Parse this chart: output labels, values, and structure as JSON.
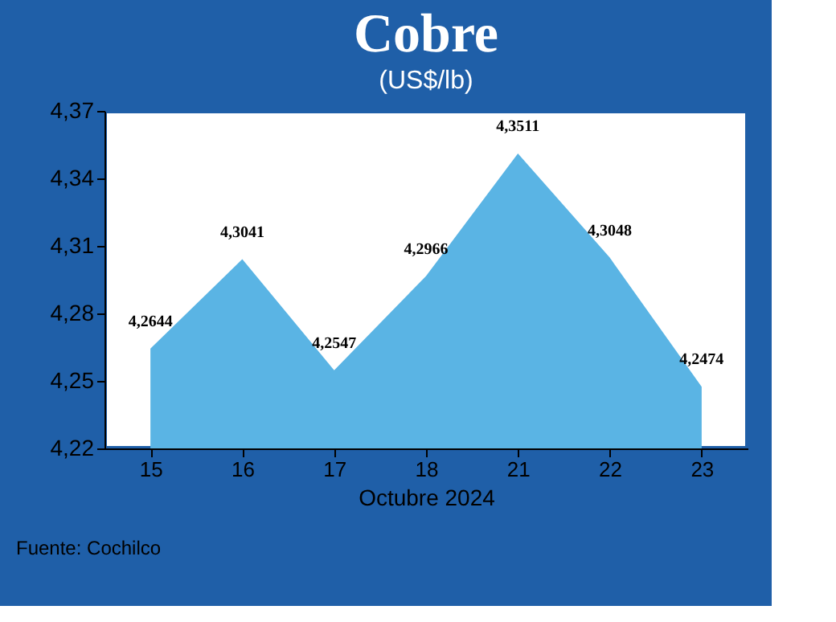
{
  "chart_data": {
    "type": "area",
    "title": "Cobre",
    "subtitle": "(US$/lb)",
    "xlabel": "Octubre 2024",
    "categories": [
      "15",
      "16",
      "17",
      "18",
      "21",
      "22",
      "23"
    ],
    "values": [
      4.2644,
      4.3041,
      4.2547,
      4.2966,
      4.3511,
      4.3048,
      4.2474
    ],
    "value_labels": [
      "4,2644",
      "4,3041",
      "4,2547",
      "4,2966",
      "4,3511",
      "4,3048",
      "4,2474"
    ],
    "color": "#5ab4e4",
    "ylim": [
      4.22,
      4.37
    ],
    "yticks": [
      {
        "value": 4.22,
        "label": "4,22"
      },
      {
        "value": 4.25,
        "label": "4,25"
      },
      {
        "value": 4.28,
        "label": "4,28"
      },
      {
        "value": 4.31,
        "label": "4,31"
      },
      {
        "value": 4.34,
        "label": "4,34"
      },
      {
        "value": 4.37,
        "label": "4,37"
      }
    ],
    "grid": false,
    "annotations": [
      "Fuente: Cochilco"
    ]
  }
}
